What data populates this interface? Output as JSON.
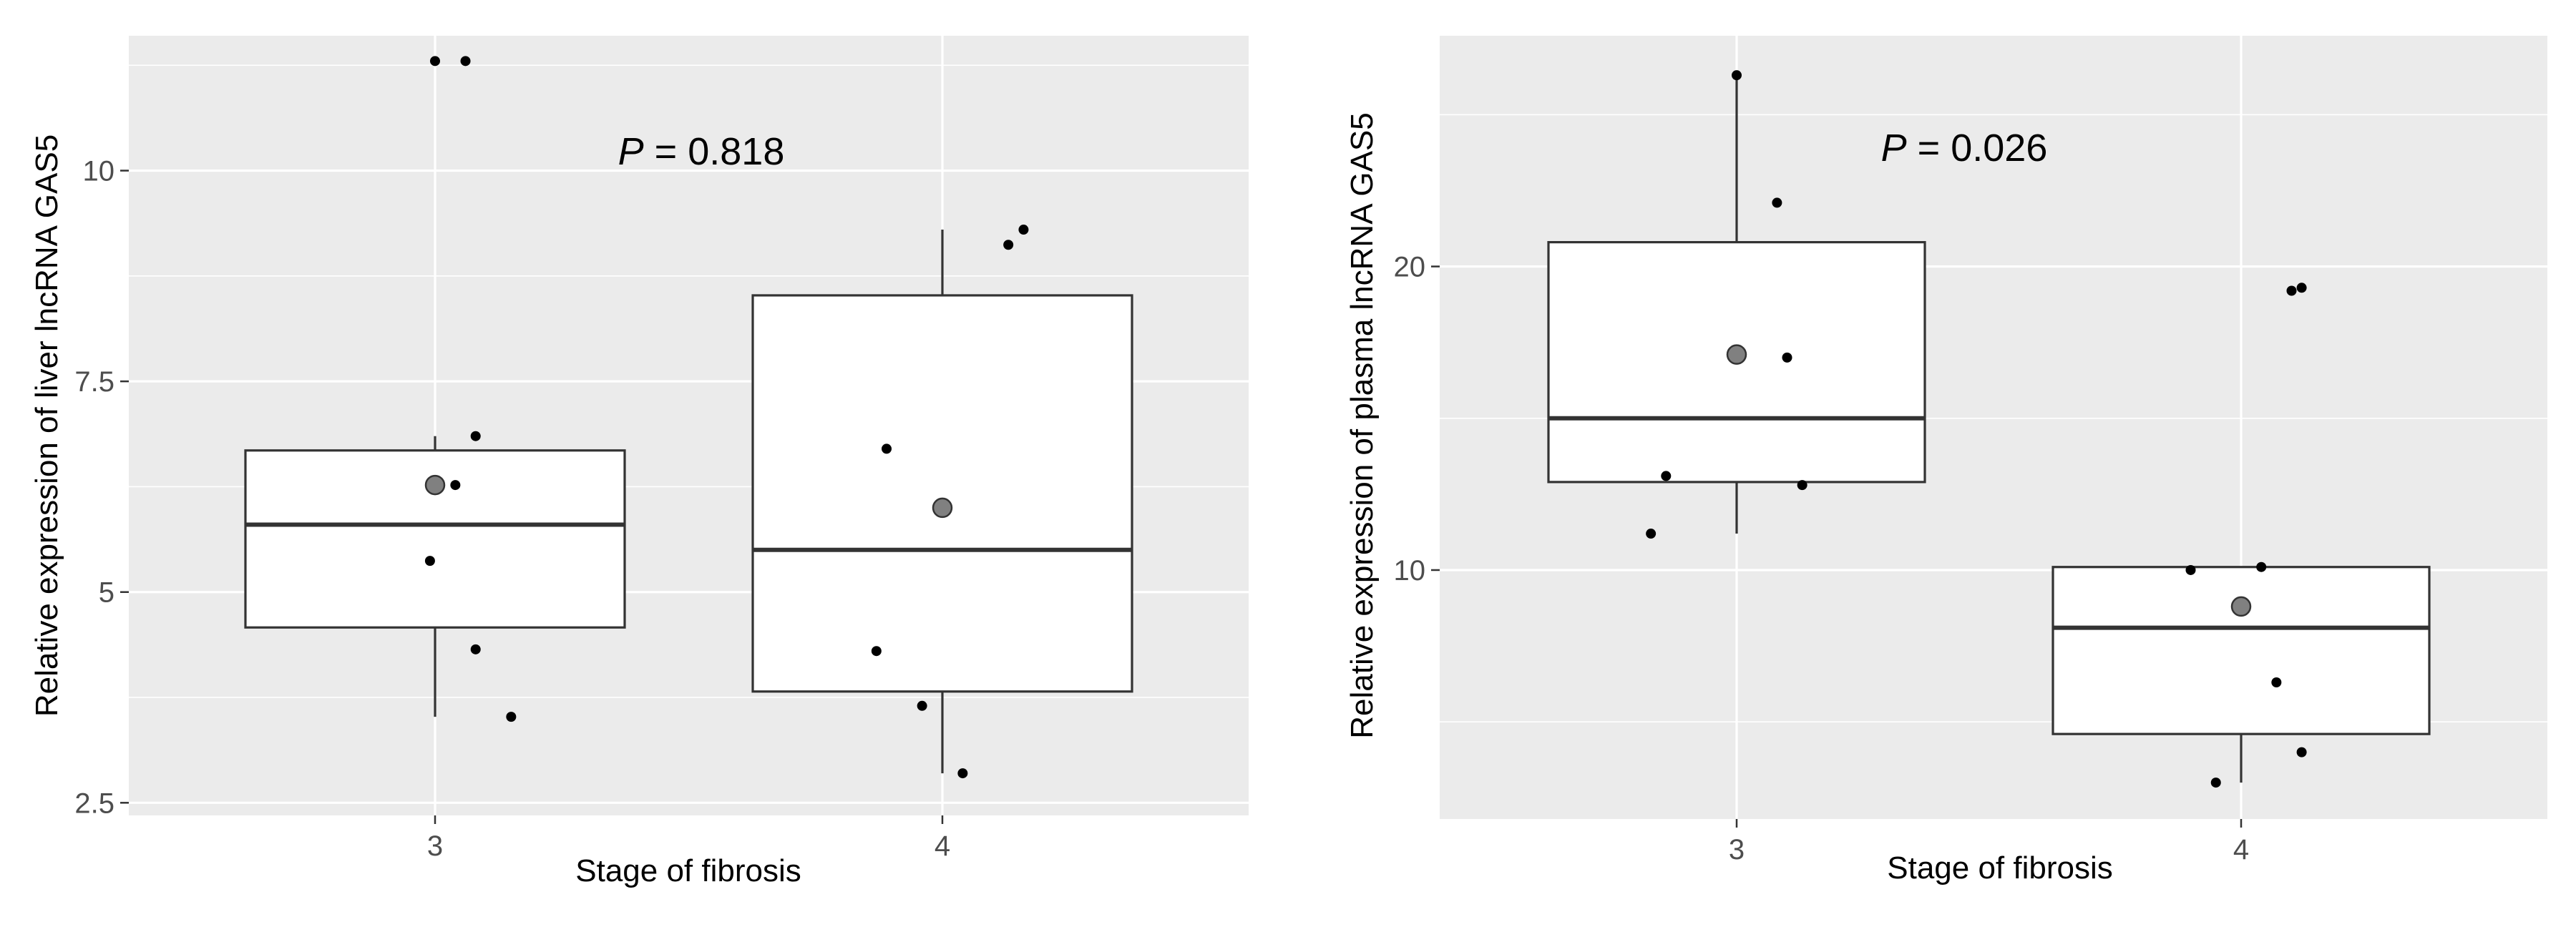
{
  "chart_data": [
    {
      "type": "box",
      "annotation": "P = 0.818",
      "annotation_italic": "P",
      "annotation_rest": " = 0.818",
      "xlabel": "Stage of fibrosis",
      "ylabel": "Relative expression of liver lncRNA GAS5",
      "categories": [
        "3",
        "4"
      ],
      "ylim": [
        2.35,
        11.6
      ],
      "yticks": [
        2.5,
        5,
        7.5,
        10
      ],
      "ytick_labels": [
        "2.5",
        "5",
        "7.5",
        "10"
      ],
      "grid": true,
      "boxes": [
        {
          "category": "3",
          "whisker_low": 3.52,
          "q1": 4.58,
          "median": 5.8,
          "q3": 6.68,
          "whisker_high": 6.85,
          "mean": 6.27
        },
        {
          "category": "4",
          "whisker_low": 2.85,
          "q1": 3.82,
          "median": 5.5,
          "q3": 8.52,
          "whisker_high": 9.3,
          "mean": 6.0
        }
      ],
      "points": [
        {
          "category": "3",
          "jitter": 0.0,
          "y": 11.3
        },
        {
          "category": "3",
          "jitter": 0.06,
          "y": 11.3
        },
        {
          "category": "3",
          "jitter": 0.08,
          "y": 6.85
        },
        {
          "category": "3",
          "jitter": 0.04,
          "y": 6.27
        },
        {
          "category": "3",
          "jitter": -0.01,
          "y": 5.37
        },
        {
          "category": "3",
          "jitter": 0.08,
          "y": 4.32
        },
        {
          "category": "3",
          "jitter": 0.15,
          "y": 3.52
        },
        {
          "category": "4",
          "jitter": 0.13,
          "y": 9.12
        },
        {
          "category": "4",
          "jitter": 0.16,
          "y": 9.3
        },
        {
          "category": "4",
          "jitter": -0.11,
          "y": 6.7
        },
        {
          "category": "4",
          "jitter": -0.13,
          "y": 4.3
        },
        {
          "category": "4",
          "jitter": -0.04,
          "y": 3.65
        },
        {
          "category": "4",
          "jitter": 0.04,
          "y": 2.85
        }
      ]
    },
    {
      "type": "box",
      "annotation": "P = 0.026",
      "annotation_italic": "P",
      "annotation_rest": " = 0.026",
      "xlabel": "Stage of fibrosis",
      "ylabel": "Relative expression of plasma lncRNA GAS5",
      "categories": [
        "3",
        "4"
      ],
      "ylim": [
        1.8,
        27.6
      ],
      "yticks": [
        10,
        20
      ],
      "ytick_labels": [
        "10",
        "20"
      ],
      "grid": true,
      "boxes": [
        {
          "category": "3",
          "whisker_low": 11.2,
          "q1": 12.9,
          "median": 15.0,
          "q3": 20.8,
          "whisker_high": 26.3,
          "mean": 17.1
        },
        {
          "category": "4",
          "whisker_low": 3.0,
          "q1": 4.6,
          "median": 8.1,
          "q3": 10.1,
          "whisker_high": 10.1,
          "mean": 8.8
        }
      ],
      "points": [
        {
          "category": "3",
          "jitter": 0.0,
          "y": 26.3
        },
        {
          "category": "3",
          "jitter": 0.08,
          "y": 22.1
        },
        {
          "category": "3",
          "jitter": 0.1,
          "y": 17.0
        },
        {
          "category": "3",
          "jitter": -0.14,
          "y": 13.1
        },
        {
          "category": "3",
          "jitter": 0.13,
          "y": 12.8
        },
        {
          "category": "3",
          "jitter": -0.17,
          "y": 11.2
        },
        {
          "category": "4",
          "jitter": 0.1,
          "y": 19.2
        },
        {
          "category": "4",
          "jitter": 0.12,
          "y": 19.3
        },
        {
          "category": "4",
          "jitter": -0.1,
          "y": 10.0
        },
        {
          "category": "4",
          "jitter": 0.04,
          "y": 10.1
        },
        {
          "category": "4",
          "jitter": 0.07,
          "y": 6.3
        },
        {
          "category": "4",
          "jitter": 0.12,
          "y": 4.0
        },
        {
          "category": "4",
          "jitter": -0.05,
          "y": 3.0
        }
      ]
    }
  ]
}
